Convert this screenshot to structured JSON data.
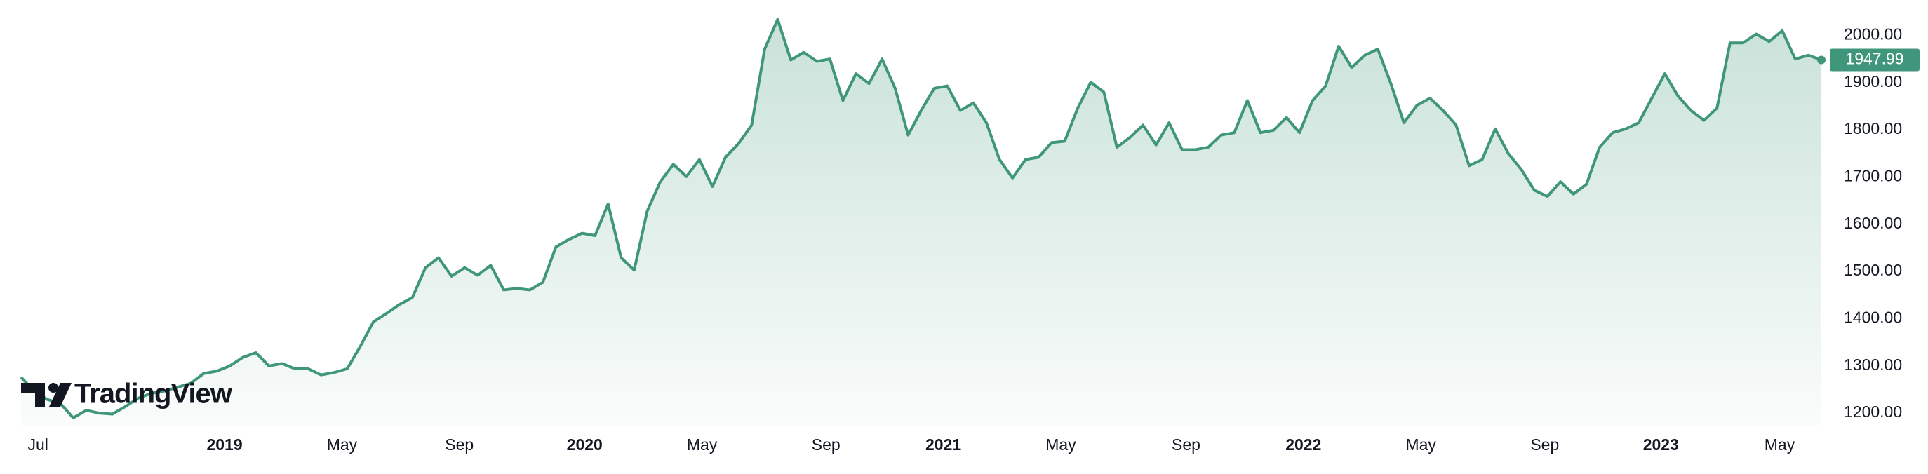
{
  "chart_data": {
    "type": "area",
    "watermark": "TradingView",
    "color": "#3f967a",
    "grid": false,
    "xlim": [
      0,
      138
    ],
    "xticks": [
      {
        "value": 1.3,
        "label": "Jul"
      },
      {
        "value": 15.6,
        "label": "2019"
      },
      {
        "value": 24.6,
        "label": "May"
      },
      {
        "value": 33.6,
        "label": "Sep"
      },
      {
        "value": 43.2,
        "label": "2020"
      },
      {
        "value": 52.2,
        "label": "May"
      },
      {
        "value": 61.7,
        "label": "Sep"
      },
      {
        "value": 70.7,
        "label": "2021"
      },
      {
        "value": 79.7,
        "label": "May"
      },
      {
        "value": 89.3,
        "label": "Sep"
      },
      {
        "value": 98.3,
        "label": "2022"
      },
      {
        "value": 107.3,
        "label": "May"
      },
      {
        "value": 116.8,
        "label": "Sep"
      },
      {
        "value": 125.7,
        "label": "2023"
      },
      {
        "value": 134.8,
        "label": "May"
      }
    ],
    "ylim": [
      1175,
      2075
    ],
    "yticks": [
      {
        "value": 1200,
        "label": "1200.00"
      },
      {
        "value": 1300,
        "label": "1300.00"
      },
      {
        "value": 1400,
        "label": "1400.00"
      },
      {
        "value": 1500,
        "label": "1500.00"
      },
      {
        "value": 1600,
        "label": "1600.00"
      },
      {
        "value": 1700,
        "label": "1700.00"
      },
      {
        "value": 1800,
        "label": "1800.00"
      },
      {
        "value": 1900,
        "label": "1900.00"
      },
      {
        "value": 2000,
        "label": "2000.00"
      }
    ],
    "values": [
      1276,
      1247,
      1229,
      1221,
      1190,
      1206,
      1200,
      1198,
      1214,
      1232,
      1242,
      1247,
      1255,
      1263,
      1284,
      1289,
      1300,
      1318,
      1328,
      1300,
      1305,
      1294,
      1294,
      1281,
      1286,
      1294,
      1341,
      1393,
      1411,
      1430,
      1445,
      1508,
      1529,
      1490,
      1508,
      1492,
      1513,
      1461,
      1464,
      1461,
      1477,
      1552,
      1568,
      1581,
      1576,
      1643,
      1529,
      1503,
      1628,
      1690,
      1727,
      1701,
      1737,
      1680,
      1742,
      1771,
      1810,
      1971,
      2034,
      1948,
      1964,
      1945,
      1950,
      1862,
      1919,
      1898,
      1950,
      1888,
      1789,
      1841,
      1888,
      1893,
      1841,
      1857,
      1815,
      1737,
      1698,
      1737,
      1742,
      1773,
      1776,
      1846,
      1901,
      1880,
      1763,
      1784,
      1810,
      1768,
      1815,
      1758,
      1758,
      1763,
      1789,
      1794,
      1862,
      1794,
      1799,
      1826,
      1794,
      1862,
      1893,
      1977,
      1932,
      1958,
      1971,
      1898,
      1815,
      1852,
      1867,
      1841,
      1810,
      1724,
      1737,
      1802,
      1750,
      1716,
      1672,
      1659,
      1690,
      1664,
      1685,
      1763,
      1794,
      1802,
      1815,
      1867,
      1919,
      1872,
      1841,
      1820,
      1846,
      1984,
      1984,
      2003,
      1987,
      2010,
      1950,
      1958,
      1947.99
    ]
  }
}
